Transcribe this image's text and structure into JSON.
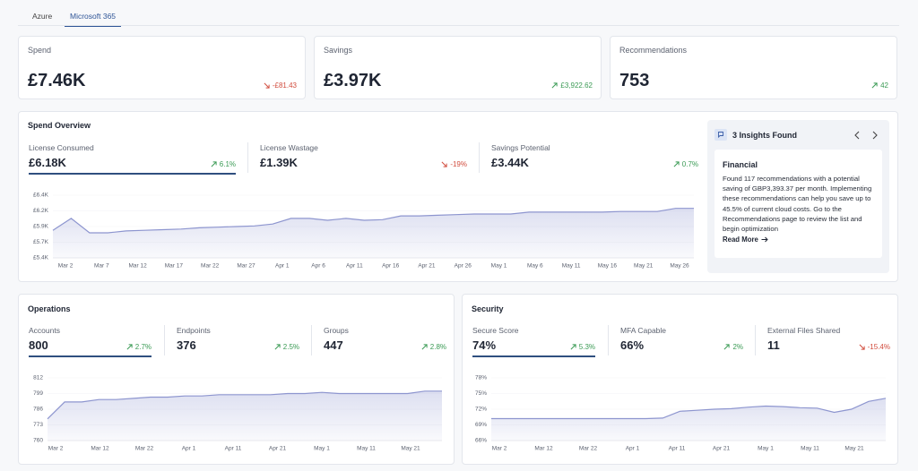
{
  "tabs": {
    "items": [
      "Azure",
      "Microsoft 365"
    ],
    "active": 1
  },
  "kpis": [
    {
      "label": "Spend",
      "value": "£7.46K",
      "change": "-£81.43",
      "direction": "down"
    },
    {
      "label": "Savings",
      "value": "£3.97K",
      "change": "£3,922.62",
      "direction": "up"
    },
    {
      "label": "Recommendations",
      "value": "753",
      "change": "42",
      "direction": "up"
    }
  ],
  "spend_overview": {
    "title": "Spend Overview",
    "selected": 0,
    "metrics": [
      {
        "label": "License Consumed",
        "value": "£6.18K",
        "change": "6.1%",
        "direction": "up"
      },
      {
        "label": "License Wastage",
        "value": "£1.39K",
        "change": "-19%",
        "direction": "down"
      },
      {
        "label": "Savings Potential",
        "value": "£3.44K",
        "change": "0.7%",
        "direction": "up"
      }
    ],
    "chart": {
      "type": "line",
      "color": "#8d95cf",
      "x_labels": [
        "Mar 2",
        "Mar 7",
        "Mar 12",
        "Mar 17",
        "Mar 22",
        "Mar 27",
        "Apr 1",
        "Apr 6",
        "Apr 11",
        "Apr 16",
        "Apr 21",
        "Apr 26",
        "May 1",
        "May 6",
        "May 11",
        "May 16",
        "May 21",
        "May 26"
      ],
      "values": [
        5840,
        6030,
        5800,
        5800,
        5830,
        5840,
        5850,
        5860,
        5880,
        5890,
        5900,
        5910,
        5940,
        6030,
        6030,
        6000,
        6030,
        6000,
        6010,
        6070,
        6070,
        6080,
        6090,
        6100,
        6100,
        6100,
        6130,
        6130,
        6130,
        6130,
        6130,
        6140,
        6140,
        6140,
        6190,
        6190
      ],
      "ylim": [
        5400,
        6400
      ],
      "yticks": [
        {
          "value": 6400,
          "label": "£6.4K"
        },
        {
          "value": 6150,
          "label": "£6.2K"
        },
        {
          "value": 5900,
          "label": "£5.9K"
        },
        {
          "value": 5650,
          "label": "£5.7K"
        },
        {
          "value": 5400,
          "label": "£5.4K"
        }
      ]
    }
  },
  "insights": {
    "title": "3 Insights Found",
    "card_title": "Financial",
    "text": "Found 117 recommendations with a potential saving of GBP3,393.37 per month. Implementing these recommendations can help you save up to 45.5% of current cloud costs. Go to the Recommendations page to review the list and begin optimization",
    "link": "Read More"
  },
  "operations": {
    "title": "Operations",
    "selected": 0,
    "metrics": [
      {
        "label": "Accounts",
        "value": "800",
        "change": "2.7%",
        "direction": "up"
      },
      {
        "label": "Endpoints",
        "value": "376",
        "change": "2.5%",
        "direction": "up"
      },
      {
        "label": "Groups",
        "value": "447",
        "change": "2.8%",
        "direction": "up"
      }
    ],
    "chart": {
      "type": "line",
      "color": "#8d95cf",
      "x_labels": [
        "Mar 2",
        "Mar 12",
        "Mar 22",
        "Apr 1",
        "Apr 11",
        "Apr 21",
        "May 1",
        "May 11",
        "May 21"
      ],
      "values": [
        778,
        792,
        792,
        794,
        794,
        795,
        796,
        796,
        797,
        797,
        798,
        798,
        798,
        798,
        799,
        799,
        800,
        799,
        799,
        799,
        799,
        799,
        801,
        801
      ],
      "ylim": [
        760,
        812
      ],
      "yticks": [
        812,
        799,
        786,
        773,
        760
      ]
    }
  },
  "security": {
    "title": "Security",
    "selected": 0,
    "metrics": [
      {
        "label": "Secure Score",
        "value": "74%",
        "change": "5.3%",
        "direction": "up"
      },
      {
        "label": "MFA Capable",
        "value": "66%",
        "change": "2%",
        "direction": "up"
      },
      {
        "label": "External Files Shared",
        "value": "11",
        "change": "-15.4%",
        "direction": "down"
      }
    ],
    "chart": {
      "type": "line",
      "color": "#8d95cf",
      "x_labels": [
        "Mar 2",
        "Mar 12",
        "Mar 22",
        "Apr 1",
        "Apr 11",
        "Apr 21",
        "May 1",
        "May 11",
        "May 21"
      ],
      "values": [
        70.2,
        70.2,
        70.2,
        70.2,
        70.2,
        70.2,
        70.2,
        70.2,
        70.2,
        70.2,
        70.3,
        71.6,
        71.8,
        72.0,
        72.1,
        72.4,
        72.6,
        72.5,
        72.3,
        72.2,
        71.4,
        72.0,
        73.5,
        74.1
      ],
      "ylim": [
        66,
        78
      ],
      "yticks": [
        {
          "value": 78,
          "label": "78%"
        },
        {
          "value": 75,
          "label": "75%"
        },
        {
          "value": 72,
          "label": "72%"
        },
        {
          "value": 69,
          "label": "69%"
        },
        {
          "value": 66,
          "label": "66%"
        }
      ]
    }
  }
}
